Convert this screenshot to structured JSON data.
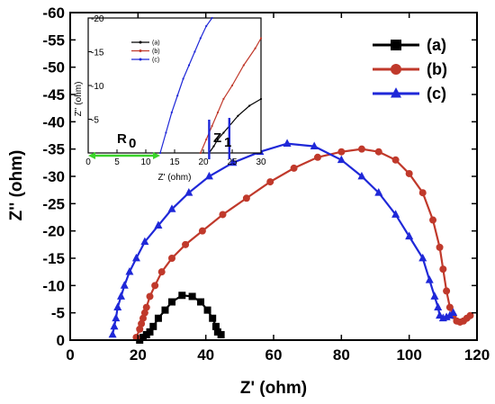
{
  "chart_data": {
    "type": "scatter",
    "xlabel": "Z' (ohm)",
    "ylabel": "Z'' (ohm)",
    "xlim": [
      0,
      120
    ],
    "ylim": [
      0,
      -60
    ],
    "xticks": [
      0,
      20,
      40,
      60,
      80,
      100,
      120
    ],
    "yticks": [
      0,
      -5,
      -10,
      -15,
      -20,
      -25,
      -30,
      -35,
      -40,
      -45,
      -50,
      -55,
      -60
    ],
    "legend_position": "top-right",
    "series": [
      {
        "name": "(a)",
        "color": "#000000",
        "marker": "square",
        "x": [
          20.5,
          21.5,
          22.5,
          23.5,
          24.5,
          26,
          28,
          30,
          33,
          36,
          38.5,
          40.5,
          42,
          43,
          43.5,
          44.5
        ],
        "y": [
          0,
          -0.5,
          -1,
          -1.5,
          -2.5,
          -4,
          -5.5,
          -7,
          -8.2,
          -8,
          -7,
          -5.5,
          -4,
          -2.5,
          -1.5,
          -1
        ]
      },
      {
        "name": "(b)",
        "color": "#c0392b",
        "marker": "circle",
        "x": [
          19.5,
          20.5,
          21,
          21.5,
          22,
          22.5,
          23.5,
          25,
          27,
          30,
          34,
          39,
          45,
          52,
          59,
          66,
          73,
          80,
          86,
          91,
          96,
          100,
          104,
          107,
          109,
          110,
          111,
          112,
          113,
          114,
          115,
          116,
          117,
          118
        ],
        "y": [
          -0.5,
          -2,
          -3,
          -4,
          -5,
          -6,
          -8,
          -10,
          -12.5,
          -15,
          -17.5,
          -20,
          -23,
          -26,
          -29,
          -31.5,
          -33.5,
          -34.5,
          -35,
          -34.5,
          -33,
          -30.5,
          -27,
          -22,
          -17,
          -13,
          -9,
          -6,
          -4.5,
          -3.5,
          -3.3,
          -3.5,
          -4,
          -4.5
        ]
      },
      {
        "name": "(c)",
        "color": "#1f28d8",
        "marker": "triangle",
        "x": [
          12.5,
          13,
          13.5,
          14,
          15,
          16,
          17.5,
          19.5,
          22,
          26,
          30,
          35,
          41,
          48,
          56,
          64,
          72,
          80,
          86,
          91,
          96,
          100,
          104,
          106,
          107.5,
          108.5,
          109,
          110,
          111,
          112,
          113
        ],
        "y": [
          -1,
          -2.5,
          -4,
          -6,
          -8,
          -10,
          -12.5,
          -15,
          -18,
          -21,
          -24,
          -27,
          -30,
          -32.5,
          -34.5,
          -36,
          -35.5,
          -33,
          -30,
          -27,
          -23,
          -19,
          -15,
          -11,
          -8,
          -6,
          -4.5,
          -4,
          -4.2,
          -4.5,
          -5
        ]
      }
    ],
    "inset": {
      "xlabel": "Z' (ohm)",
      "ylabel": "Z'' (ohm)",
      "xlim": [
        0,
        30
      ],
      "ylim": [
        0,
        -20
      ],
      "xticks": [
        0,
        5,
        10,
        15,
        20,
        25,
        30
      ],
      "yticks": [
        -5,
        -10,
        -15,
        -20
      ],
      "legend_position": "top-right",
      "annotations": {
        "r0_label": "R",
        "r0_subscript": "0",
        "z_label": "Z",
        "z_subscript": "1"
      },
      "r0_span": [
        0,
        12.5
      ],
      "z_span": [
        21,
        24.5
      ],
      "series": [
        {
          "name": "(a)",
          "color": "#000000",
          "x": [
            21.0,
            21.8,
            22.5,
            23.5,
            24.5,
            26,
            28,
            30
          ],
          "y": [
            0,
            -1,
            -2,
            -3,
            -4,
            -5.5,
            -7,
            -8
          ]
        },
        {
          "name": "(b)",
          "color": "#c0392b",
          "x": [
            19.5,
            20.5,
            21.5,
            22.5,
            23.5,
            25,
            27,
            29,
            30
          ],
          "y": [
            0,
            -2,
            -4,
            -6,
            -8,
            -10,
            -13,
            -15.5,
            -17
          ]
        },
        {
          "name": "(c)",
          "color": "#1f28d8",
          "x": [
            12.5,
            13.5,
            14.5,
            15.5,
            16.5,
            17.5,
            18.5,
            19.5,
            20.5,
            21.5
          ],
          "y": [
            0,
            -3,
            -6,
            -8.5,
            -11,
            -13,
            -15,
            -17,
            -18.8,
            -20
          ]
        }
      ]
    }
  }
}
